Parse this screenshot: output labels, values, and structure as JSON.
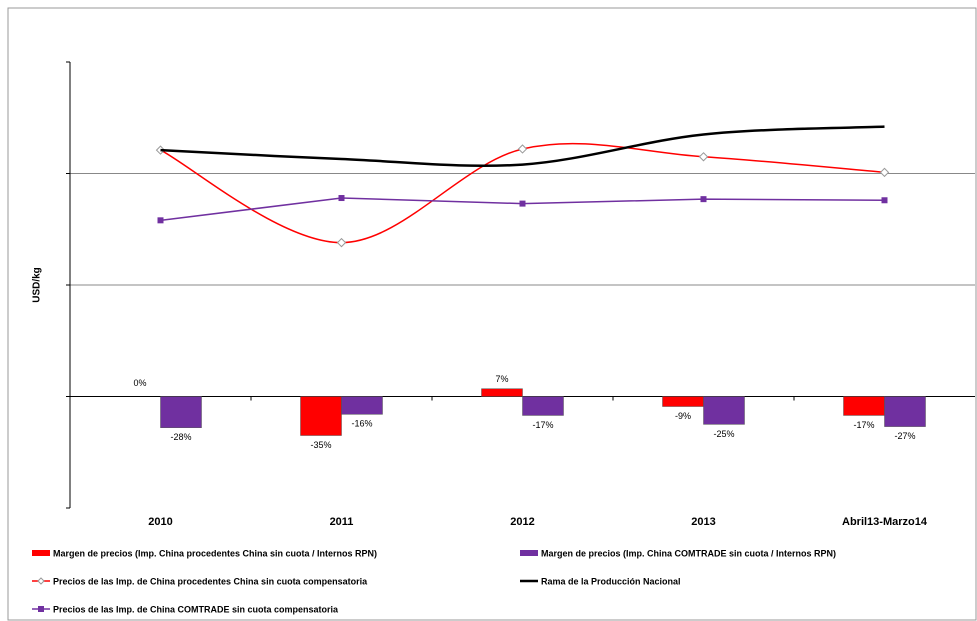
{
  "chart_data": {
    "type": "combo",
    "y_label": "USD/kg",
    "categories": [
      "2010",
      "2011",
      "2012",
      "2013",
      "Abril13-Marzo14"
    ],
    "ylim": [
      -1,
      3
    ],
    "yticks": [
      -1,
      0,
      1,
      2,
      3
    ],
    "y2lim": [
      -100,
      300
    ],
    "grid": true,
    "series": [
      {
        "name": "Margen de precios (Imp. China procedentes China sin cuota / Internos RPN)",
        "type": "bar",
        "axis": "y2",
        "color": "#ff0000",
        "values": [
          0,
          -35,
          7,
          -9,
          -17
        ],
        "value_labels": [
          "0%",
          "-35%",
          "7%",
          "-9%",
          "-17%"
        ]
      },
      {
        "name": "Margen de precios (Imp. China COMTRADE sin cuota / Internos RPN)",
        "type": "bar",
        "axis": "y2",
        "color": "#7030a0",
        "values": [
          -28,
          -16,
          -17,
          -25,
          -27
        ],
        "value_labels": [
          "-28%",
          "-16%",
          "-17%",
          "-25%",
          "-27%"
        ]
      },
      {
        "name": "Precios de las Imp. de China procedentes China sin cuota compensatoria",
        "type": "line",
        "smooth": true,
        "marker": "diamond",
        "color": "#ff0000",
        "values": [
          2.21,
          1.38,
          2.22,
          2.15,
          2.01
        ]
      },
      {
        "name": "Rama de la Producción Nacional",
        "type": "line",
        "smooth": true,
        "marker": "none",
        "color": "#000000",
        "values": [
          2.21,
          2.13,
          2.08,
          2.35,
          2.42
        ]
      },
      {
        "name": "Precios de las Imp. de China COMTRADE sin cuota compensatoria",
        "type": "line",
        "smooth": false,
        "marker": "square",
        "color": "#7030a0",
        "values": [
          1.58,
          1.78,
          1.73,
          1.77,
          1.76
        ]
      }
    ]
  }
}
